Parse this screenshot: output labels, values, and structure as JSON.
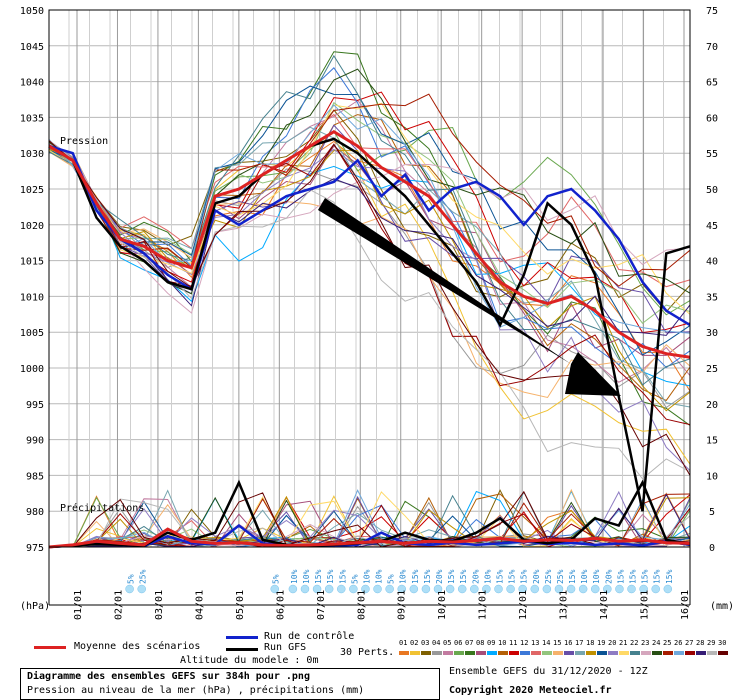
{
  "chart_data": {
    "type": "line",
    "title": "Diagramme des ensembles GEFS sur 384h pour .png",
    "subtitle": "Pression au niveau de la mer (hPa) , précipitations (mm)",
    "left_axis_label": "(hPa)",
    "right_axis_label": "(mm)",
    "pressure_label": "Pression",
    "precip_label": "Précipitations",
    "pressure_ticks": [
      1050,
      1045,
      1040,
      1035,
      1030,
      1025,
      1020,
      1015,
      1010,
      1005,
      1000,
      995,
      990,
      985,
      980,
      975
    ],
    "pressure_range": [
      975,
      1050
    ],
    "precip_ticks": [
      75,
      70,
      65,
      60,
      55,
      50,
      45,
      40,
      35,
      30,
      25,
      20,
      15,
      10,
      5,
      0
    ],
    "precip_range": [
      0,
      75
    ],
    "dates": [
      "01/01",
      "02/01",
      "03/01",
      "04/01",
      "05/01",
      "06/01",
      "07/01",
      "08/01",
      "09/01",
      "10/01",
      "11/01",
      "12/01",
      "13/01",
      "14/01",
      "15/01",
      "16/01"
    ],
    "snow_labels": [
      {
        "step": 13,
        "text": "5%"
      },
      {
        "step": 15,
        "text": "25%"
      },
      {
        "step": 37,
        "text": "5%"
      },
      {
        "step": 40,
        "text": "10%"
      },
      {
        "step": 42,
        "text": "10%"
      },
      {
        "step": 44,
        "text": "15%"
      },
      {
        "step": 46,
        "text": "15%"
      },
      {
        "step": 48,
        "text": "15%"
      },
      {
        "step": 50,
        "text": "5%"
      },
      {
        "step": 52,
        "text": "10%"
      },
      {
        "step": 54,
        "text": "10%"
      },
      {
        "step": 56,
        "text": "5%"
      },
      {
        "step": 58,
        "text": "10%"
      },
      {
        "step": 60,
        "text": "15%"
      },
      {
        "step": 62,
        "text": "15%"
      },
      {
        "step": 64,
        "text": "20%"
      },
      {
        "step": 66,
        "text": "15%"
      },
      {
        "step": 68,
        "text": "15%"
      },
      {
        "step": 70,
        "text": "20%"
      },
      {
        "step": 72,
        "text": "10%"
      },
      {
        "step": 74,
        "text": "15%"
      },
      {
        "step": 76,
        "text": "15%"
      },
      {
        "step": 78,
        "text": "15%"
      },
      {
        "step": 80,
        "text": "20%"
      },
      {
        "step": 82,
        "text": "25%"
      },
      {
        "step": 84,
        "text": "25%"
      },
      {
        "step": 86,
        "text": "15%"
      },
      {
        "step": 88,
        "text": "10%"
      },
      {
        "step": 90,
        "text": "10%"
      },
      {
        "step": 92,
        "text": "20%"
      },
      {
        "step": 94,
        "text": "15%"
      },
      {
        "step": 96,
        "text": "15%"
      },
      {
        "step": 98,
        "text": "15%"
      },
      {
        "step": 100,
        "text": "15%"
      },
      {
        "step": 102,
        "text": "15%"
      }
    ],
    "series": [
      {
        "name": "Moyenne des scénarios",
        "color": "#dd2222",
        "pressure": [
          1031,
          1029,
          1023,
          1018,
          1017,
          1015,
          1014,
          1024,
          1025,
          1027,
          1029,
          1031,
          1033,
          1031,
          1028,
          1026,
          1024,
          1020,
          1016,
          1012,
          1010,
          1009,
          1010,
          1008,
          1005,
          1003,
          1002,
          1001.5
        ],
        "precip": [
          0,
          0.3,
          0.8,
          0.5,
          0.3,
          2.5,
          0.8,
          0.5,
          0.6,
          0.3,
          0.2,
          0.3,
          0.4,
          0.6,
          0.8,
          0.5,
          0.8,
          0.7,
          0.9,
          1.2,
          0.8,
          1,
          0.9,
          1.2,
          0.8,
          1,
          0.6,
          0.5
        ]
      },
      {
        "name": "Run de contrôle",
        "color": "#1122cc",
        "pressure": [
          1031,
          1030,
          1022,
          1018,
          1016,
          1013,
          1011,
          1022,
          1020,
          1022,
          1024,
          1025,
          1026,
          1029,
          1024,
          1027,
          1022,
          1025,
          1026,
          1024,
          1020,
          1024,
          1025,
          1022,
          1018,
          1012,
          1008,
          1006
        ],
        "precip": [
          0,
          0.2,
          0.5,
          0.3,
          0.1,
          1.5,
          0.5,
          0.4,
          3,
          0.5,
          0.3,
          0.2,
          0.2,
          0.3,
          2,
          0.5,
          0.3,
          0.6,
          0.3,
          0.5,
          0.8,
          0.4,
          0.6,
          0.3,
          0.5,
          0.2,
          0.8,
          0.3
        ]
      },
      {
        "name": "Run GFS",
        "color": "#000000",
        "pressure": [
          1031,
          1029,
          1021,
          1017,
          1015,
          1012,
          1011,
          1023,
          1024,
          1027,
          1029,
          1031,
          1032,
          1030,
          1027,
          1024,
          1020,
          1016,
          1012,
          1006,
          1013,
          1023,
          1020,
          1013,
          996,
          980,
          1016,
          1017
        ],
        "precip": [
          0,
          0.2,
          0.4,
          0.3,
          0.2,
          2,
          1,
          2,
          9,
          1,
          0.3,
          0.2,
          0.3,
          0.5,
          0.8,
          2,
          1,
          0.8,
          2,
          4,
          1,
          0.5,
          1,
          4,
          3,
          9,
          1,
          0.4
        ]
      }
    ],
    "perturbations_label": "30 Perts.",
    "perturbation_ids": [
      "01",
      "02",
      "03",
      "04",
      "05",
      "06",
      "07",
      "08",
      "09",
      "10",
      "11",
      "12",
      "13",
      "14",
      "15",
      "16",
      "17",
      "18",
      "19",
      "20",
      "21",
      "22",
      "23",
      "24",
      "25",
      "26",
      "27",
      "28",
      "29",
      "30"
    ],
    "perturbation_colors": [
      "#e87722",
      "#f1c232",
      "#7f6000",
      "#999999",
      "#c27ba0",
      "#6aa84f",
      "#38761d",
      "#a64d79",
      "#00aaff",
      "#b45f06",
      "#cc0000",
      "#3c78d8",
      "#e06666",
      "#93c47d",
      "#f6b26b",
      "#674ea7",
      "#76a5af",
      "#bf9000",
      "#0b5394",
      "#8e7cc3",
      "#ffd966",
      "#45818e",
      "#d5a6bd",
      "#274e13",
      "#a61c00",
      "#6fa8dc",
      "#990000",
      "#351c75",
      "#b7b7b7",
      "#660000"
    ],
    "altitude_text": "Altitude du modele : 0m",
    "ensemble_text": "Ensemble GEFS du 31/12/2020 - 12Z",
    "copyright": "Copyright 2020 Meteociel.fr"
  }
}
